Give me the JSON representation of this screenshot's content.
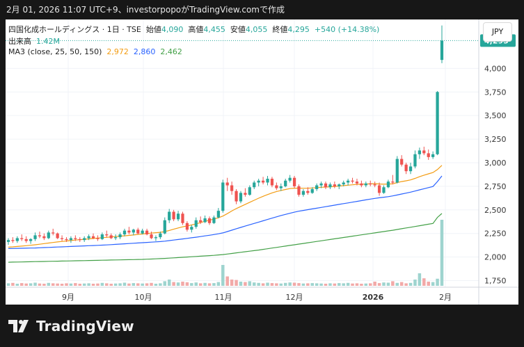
{
  "header": {
    "text": "2月 01, 2026 11:07 UTC+9、investorpopoがTradingView.comで作成"
  },
  "legend": {
    "line1": {
      "symbol": "四国化成ホールディングス · 1日 · TSE",
      "open_label": "始値",
      "open": "4,090",
      "high_label": "高値",
      "high": "4,455",
      "low_label": "安値",
      "low": "4,055",
      "close_label": "終値",
      "close": "4,295",
      "change": "+540 (+14.38%)"
    },
    "line2": {
      "label": "出来高",
      "value": "1.42M"
    },
    "line3": {
      "label": "MA3 (close, 25, 50, 150)",
      "ma25": "2,972",
      "ma50": "2,860",
      "ma150": "2,462"
    }
  },
  "currency_button": "JPY",
  "colors": {
    "up": "#26a69a",
    "down": "#ef5350",
    "ma25": "#f39c12",
    "ma50": "#2962ff",
    "ma150": "#43a047",
    "vol_up": "#9ed4cf",
    "vol_down": "#f2a9a8"
  },
  "chart_data": {
    "type": "candlestick",
    "x_ticks": [
      "9月",
      "10月",
      "11月",
      "12月",
      "2026",
      "2月"
    ],
    "y_ticks": [
      1750,
      2000,
      2250,
      2500,
      2750,
      3000,
      3250,
      3500,
      3750,
      4000
    ],
    "ylim": [
      1680,
      4460
    ],
    "last_price_label": "4,295",
    "candles": [
      {
        "o": 2160,
        "h": 2200,
        "l": 2130,
        "c": 2180
      },
      {
        "o": 2180,
        "h": 2210,
        "l": 2150,
        "c": 2170
      },
      {
        "o": 2170,
        "h": 2220,
        "l": 2150,
        "c": 2200
      },
      {
        "o": 2200,
        "h": 2240,
        "l": 2170,
        "c": 2190
      },
      {
        "o": 2190,
        "h": 2220,
        "l": 2150,
        "c": 2170
      },
      {
        "o": 2170,
        "h": 2200,
        "l": 2140,
        "c": 2190
      },
      {
        "o": 2190,
        "h": 2260,
        "l": 2170,
        "c": 2230
      },
      {
        "o": 2230,
        "h": 2270,
        "l": 2200,
        "c": 2220
      },
      {
        "o": 2220,
        "h": 2250,
        "l": 2180,
        "c": 2200
      },
      {
        "o": 2200,
        "h": 2280,
        "l": 2190,
        "c": 2260
      },
      {
        "o": 2260,
        "h": 2300,
        "l": 2230,
        "c": 2250
      },
      {
        "o": 2250,
        "h": 2260,
        "l": 2190,
        "c": 2200
      },
      {
        "o": 2200,
        "h": 2230,
        "l": 2170,
        "c": 2190
      },
      {
        "o": 2190,
        "h": 2210,
        "l": 2160,
        "c": 2180
      },
      {
        "o": 2180,
        "h": 2220,
        "l": 2150,
        "c": 2200
      },
      {
        "o": 2200,
        "h": 2230,
        "l": 2170,
        "c": 2190
      },
      {
        "o": 2190,
        "h": 2210,
        "l": 2160,
        "c": 2180
      },
      {
        "o": 2180,
        "h": 2220,
        "l": 2160,
        "c": 2200
      },
      {
        "o": 2200,
        "h": 2240,
        "l": 2180,
        "c": 2220
      },
      {
        "o": 2220,
        "h": 2250,
        "l": 2190,
        "c": 2200
      },
      {
        "o": 2200,
        "h": 2230,
        "l": 2170,
        "c": 2190
      },
      {
        "o": 2190,
        "h": 2260,
        "l": 2180,
        "c": 2240
      },
      {
        "o": 2240,
        "h": 2280,
        "l": 2210,
        "c": 2230
      },
      {
        "o": 2230,
        "h": 2250,
        "l": 2190,
        "c": 2200
      },
      {
        "o": 2200,
        "h": 2240,
        "l": 2180,
        "c": 2210
      },
      {
        "o": 2210,
        "h": 2260,
        "l": 2190,
        "c": 2240
      },
      {
        "o": 2240,
        "h": 2300,
        "l": 2220,
        "c": 2280
      },
      {
        "o": 2280,
        "h": 2320,
        "l": 2240,
        "c": 2260
      },
      {
        "o": 2260,
        "h": 2300,
        "l": 2230,
        "c": 2290
      },
      {
        "o": 2290,
        "h": 2310,
        "l": 2240,
        "c": 2250
      },
      {
        "o": 2250,
        "h": 2300,
        "l": 2240,
        "c": 2280
      },
      {
        "o": 2280,
        "h": 2300,
        "l": 2230,
        "c": 2240
      },
      {
        "o": 2240,
        "h": 2270,
        "l": 2190,
        "c": 2200
      },
      {
        "o": 2200,
        "h": 2230,
        "l": 2170,
        "c": 2210
      },
      {
        "o": 2210,
        "h": 2270,
        "l": 2190,
        "c": 2250
      },
      {
        "o": 2250,
        "h": 2420,
        "l": 2240,
        "c": 2390
      },
      {
        "o": 2390,
        "h": 2510,
        "l": 2360,
        "c": 2480
      },
      {
        "o": 2480,
        "h": 2500,
        "l": 2380,
        "c": 2400
      },
      {
        "o": 2400,
        "h": 2490,
        "l": 2380,
        "c": 2460
      },
      {
        "o": 2460,
        "h": 2480,
        "l": 2340,
        "c": 2360
      },
      {
        "o": 2360,
        "h": 2380,
        "l": 2270,
        "c": 2290
      },
      {
        "o": 2290,
        "h": 2340,
        "l": 2260,
        "c": 2320
      },
      {
        "o": 2320,
        "h": 2420,
        "l": 2300,
        "c": 2390
      },
      {
        "o": 2390,
        "h": 2430,
        "l": 2350,
        "c": 2370
      },
      {
        "o": 2370,
        "h": 2440,
        "l": 2360,
        "c": 2410
      },
      {
        "o": 2410,
        "h": 2430,
        "l": 2340,
        "c": 2360
      },
      {
        "o": 2360,
        "h": 2440,
        "l": 2350,
        "c": 2420
      },
      {
        "o": 2420,
        "h": 2520,
        "l": 2410,
        "c": 2490
      },
      {
        "o": 2490,
        "h": 2820,
        "l": 2470,
        "c": 2790
      },
      {
        "o": 2790,
        "h": 2840,
        "l": 2700,
        "c": 2760
      },
      {
        "o": 2760,
        "h": 2800,
        "l": 2660,
        "c": 2700
      },
      {
        "o": 2700,
        "h": 2720,
        "l": 2560,
        "c": 2590
      },
      {
        "o": 2590,
        "h": 2700,
        "l": 2570,
        "c": 2680
      },
      {
        "o": 2680,
        "h": 2730,
        "l": 2640,
        "c": 2660
      },
      {
        "o": 2660,
        "h": 2760,
        "l": 2650,
        "c": 2740
      },
      {
        "o": 2740,
        "h": 2810,
        "l": 2720,
        "c": 2790
      },
      {
        "o": 2790,
        "h": 2830,
        "l": 2750,
        "c": 2810
      },
      {
        "o": 2810,
        "h": 2850,
        "l": 2770,
        "c": 2790
      },
      {
        "o": 2790,
        "h": 2860,
        "l": 2760,
        "c": 2830
      },
      {
        "o": 2830,
        "h": 2850,
        "l": 2740,
        "c": 2760
      },
      {
        "o": 2760,
        "h": 2790,
        "l": 2710,
        "c": 2730
      },
      {
        "o": 2730,
        "h": 2780,
        "l": 2700,
        "c": 2750
      },
      {
        "o": 2750,
        "h": 2830,
        "l": 2740,
        "c": 2810
      },
      {
        "o": 2810,
        "h": 2870,
        "l": 2790,
        "c": 2840
      },
      {
        "o": 2840,
        "h": 2860,
        "l": 2730,
        "c": 2750
      },
      {
        "o": 2750,
        "h": 2770,
        "l": 2640,
        "c": 2660
      },
      {
        "o": 2660,
        "h": 2720,
        "l": 2640,
        "c": 2700
      },
      {
        "o": 2700,
        "h": 2740,
        "l": 2660,
        "c": 2680
      },
      {
        "o": 2680,
        "h": 2740,
        "l": 2670,
        "c": 2720
      },
      {
        "o": 2720,
        "h": 2780,
        "l": 2700,
        "c": 2760
      },
      {
        "o": 2760,
        "h": 2800,
        "l": 2730,
        "c": 2780
      },
      {
        "o": 2780,
        "h": 2800,
        "l": 2720,
        "c": 2740
      },
      {
        "o": 2740,
        "h": 2790,
        "l": 2720,
        "c": 2770
      },
      {
        "o": 2770,
        "h": 2800,
        "l": 2730,
        "c": 2750
      },
      {
        "o": 2750,
        "h": 2780,
        "l": 2720,
        "c": 2770
      },
      {
        "o": 2770,
        "h": 2810,
        "l": 2750,
        "c": 2790
      },
      {
        "o": 2790,
        "h": 2830,
        "l": 2760,
        "c": 2810
      },
      {
        "o": 2810,
        "h": 2840,
        "l": 2780,
        "c": 2800
      },
      {
        "o": 2800,
        "h": 2830,
        "l": 2760,
        "c": 2780
      },
      {
        "o": 2780,
        "h": 2810,
        "l": 2740,
        "c": 2760
      },
      {
        "o": 2760,
        "h": 2800,
        "l": 2740,
        "c": 2780
      },
      {
        "o": 2780,
        "h": 2810,
        "l": 2750,
        "c": 2770
      },
      {
        "o": 2770,
        "h": 2800,
        "l": 2740,
        "c": 2760
      },
      {
        "o": 2760,
        "h": 2790,
        "l": 2650,
        "c": 2680
      },
      {
        "o": 2680,
        "h": 2760,
        "l": 2670,
        "c": 2740
      },
      {
        "o": 2740,
        "h": 2820,
        "l": 2730,
        "c": 2800
      },
      {
        "o": 2800,
        "h": 2870,
        "l": 2770,
        "c": 2790
      },
      {
        "o": 2790,
        "h": 3070,
        "l": 2780,
        "c": 3040
      },
      {
        "o": 3040,
        "h": 3080,
        "l": 2960,
        "c": 2980
      },
      {
        "o": 2980,
        "h": 3000,
        "l": 2880,
        "c": 2910
      },
      {
        "o": 2910,
        "h": 3000,
        "l": 2880,
        "c": 2960
      },
      {
        "o": 2960,
        "h": 3130,
        "l": 2940,
        "c": 3090
      },
      {
        "o": 3090,
        "h": 3160,
        "l": 3040,
        "c": 3130
      },
      {
        "o": 3130,
        "h": 3170,
        "l": 3080,
        "c": 3100
      },
      {
        "o": 3100,
        "h": 3140,
        "l": 3030,
        "c": 3060
      },
      {
        "o": 3060,
        "h": 3120,
        "l": 3040,
        "c": 3090
      },
      {
        "o": 3090,
        "h": 3760,
        "l": 3080,
        "c": 3750
      },
      {
        "o": 4090,
        "h": 4455,
        "l": 4055,
        "c": 4295
      }
    ],
    "ma25": [
      2105,
      2108,
      2112,
      2116,
      2120,
      2125,
      2130,
      2136,
      2142,
      2148,
      2154,
      2160,
      2165,
      2170,
      2175,
      2180,
      2184,
      2188,
      2192,
      2197,
      2201,
      2205,
      2209,
      2213,
      2217,
      2221,
      2225,
      2229,
      2234,
      2239,
      2244,
      2249,
      2254,
      2258,
      2262,
      2270,
      2282,
      2295,
      2308,
      2320,
      2330,
      2340,
      2352,
      2365,
      2378,
      2390,
      2402,
      2416,
      2434,
      2460,
      2488,
      2514,
      2536,
      2558,
      2580,
      2602,
      2624,
      2644,
      2662,
      2680,
      2695,
      2706,
      2716,
      2726,
      2730,
      2730,
      2729,
      2730,
      2732,
      2736,
      2740,
      2742,
      2745,
      2748,
      2752,
      2757,
      2762,
      2766,
      2770,
      2772,
      2774,
      2776,
      2778,
      2774,
      2772,
      2774,
      2776,
      2790,
      2800,
      2808,
      2818,
      2834,
      2852,
      2868,
      2882,
      2896,
      2928,
      2972
    ],
    "ma50": [
      2090,
      2091,
      2092,
      2093,
      2094,
      2095,
      2096,
      2098,
      2100,
      2102,
      2104,
      2106,
      2108,
      2110,
      2112,
      2114,
      2116,
      2118,
      2120,
      2122,
      2124,
      2126,
      2128,
      2131,
      2134,
      2137,
      2140,
      2143,
      2146,
      2149,
      2152,
      2155,
      2158,
      2161,
      2164,
      2168,
      2174,
      2180,
      2186,
      2192,
      2198,
      2204,
      2210,
      2217,
      2224,
      2231,
      2238,
      2246,
      2256,
      2270,
      2285,
      2300,
      2314,
      2328,
      2342,
      2356,
      2370,
      2384,
      2398,
      2412,
      2426,
      2440,
      2452,
      2464,
      2476,
      2486,
      2494,
      2502,
      2510,
      2518,
      2526,
      2534,
      2542,
      2550,
      2558,
      2566,
      2574,
      2582,
      2590,
      2598,
      2606,
      2614,
      2622,
      2628,
      2634,
      2640,
      2648,
      2658,
      2668,
      2678,
      2688,
      2700,
      2712,
      2724,
      2736,
      2748,
      2800,
      2860
    ],
    "ma150": [
      1945,
      1946,
      1947,
      1948,
      1949,
      1950,
      1951,
      1952,
      1953,
      1954,
      1955,
      1956,
      1957,
      1958,
      1959,
      1960,
      1961,
      1962,
      1963,
      1964,
      1965,
      1966,
      1967,
      1968,
      1969,
      1970,
      1971,
      1972,
      1973,
      1974,
      1975,
      1977,
      1979,
      1981,
      1983,
      1985,
      1988,
      1991,
      1994,
      1997,
      2000,
      2003,
      2006,
      2009,
      2012,
      2015,
      2018,
      2022,
      2026,
      2032,
      2038,
      2044,
      2050,
      2056,
      2062,
      2068,
      2074,
      2081,
      2088,
      2095,
      2102,
      2109,
      2116,
      2123,
      2130,
      2137,
      2144,
      2151,
      2158,
      2165,
      2172,
      2179,
      2186,
      2193,
      2200,
      2207,
      2214,
      2221,
      2228,
      2235,
      2242,
      2249,
      2256,
      2263,
      2270,
      2277,
      2284,
      2292,
      2300,
      2308,
      2316,
      2324,
      2332,
      2340,
      2348,
      2356,
      2420,
      2462
    ],
    "volume": [
      0.12,
      0.14,
      0.1,
      0.13,
      0.11,
      0.12,
      0.15,
      0.11,
      0.1,
      0.14,
      0.12,
      0.11,
      0.1,
      0.12,
      0.11,
      0.13,
      0.1,
      0.11,
      0.12,
      0.1,
      0.11,
      0.14,
      0.12,
      0.1,
      0.11,
      0.12,
      0.15,
      0.11,
      0.13,
      0.12,
      0.11,
      0.12,
      0.14,
      0.1,
      0.12,
      0.22,
      0.3,
      0.18,
      0.16,
      0.2,
      0.17,
      0.13,
      0.16,
      0.12,
      0.14,
      0.12,
      0.13,
      0.18,
      1.0,
      0.45,
      0.3,
      0.28,
      0.2,
      0.18,
      0.22,
      0.16,
      0.14,
      0.12,
      0.15,
      0.13,
      0.12,
      0.11,
      0.14,
      0.16,
      0.15,
      0.13,
      0.11,
      0.12,
      0.13,
      0.12,
      0.11,
      0.1,
      0.12,
      0.11,
      0.13,
      0.12,
      0.14,
      0.11,
      0.12,
      0.1,
      0.11,
      0.12,
      0.2,
      0.13,
      0.16,
      0.15,
      0.22,
      0.14,
      0.18,
      0.12,
      0.14,
      0.3,
      0.6,
      0.36,
      0.2,
      0.18,
      0.34,
      3.6
    ]
  }
}
